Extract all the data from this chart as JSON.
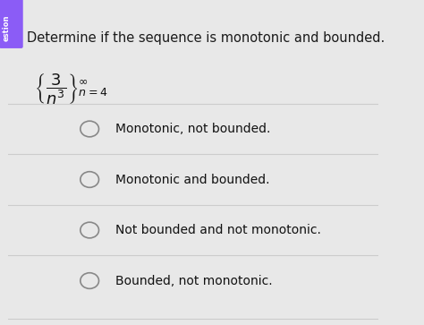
{
  "title": "Determine if the sequence is monotonic and bounded.",
  "formula_main": "$\\left\\{\\dfrac{3}{n^3}\\right\\}_{n=4}^{\\infty}$",
  "options": [
    "Monotonic, not bounded.",
    "Monotonic and bounded.",
    "Not bounded and not monotonic.",
    "Bounded, not monotonic."
  ],
  "bg_color": "#e8e8e8",
  "title_color": "#1a1a1a",
  "option_color": "#111111",
  "circle_color": "#888888",
  "line_color": "#cccccc",
  "tab_color": "#8B5CF6",
  "tab_text": "estion",
  "title_fontsize": 10.5,
  "option_fontsize": 10,
  "formula_fontsize": 13
}
